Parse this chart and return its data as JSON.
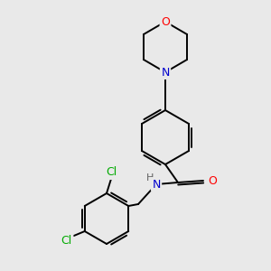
{
  "background_color": "#e9e9e9",
  "bond_color": "#000000",
  "atom_colors": {
    "O": "#ff0000",
    "N": "#0000cd",
    "Cl": "#00aa00",
    "H": "#606060"
  },
  "figsize": [
    3.0,
    3.0
  ],
  "dpi": 100,
  "lw": 1.4
}
